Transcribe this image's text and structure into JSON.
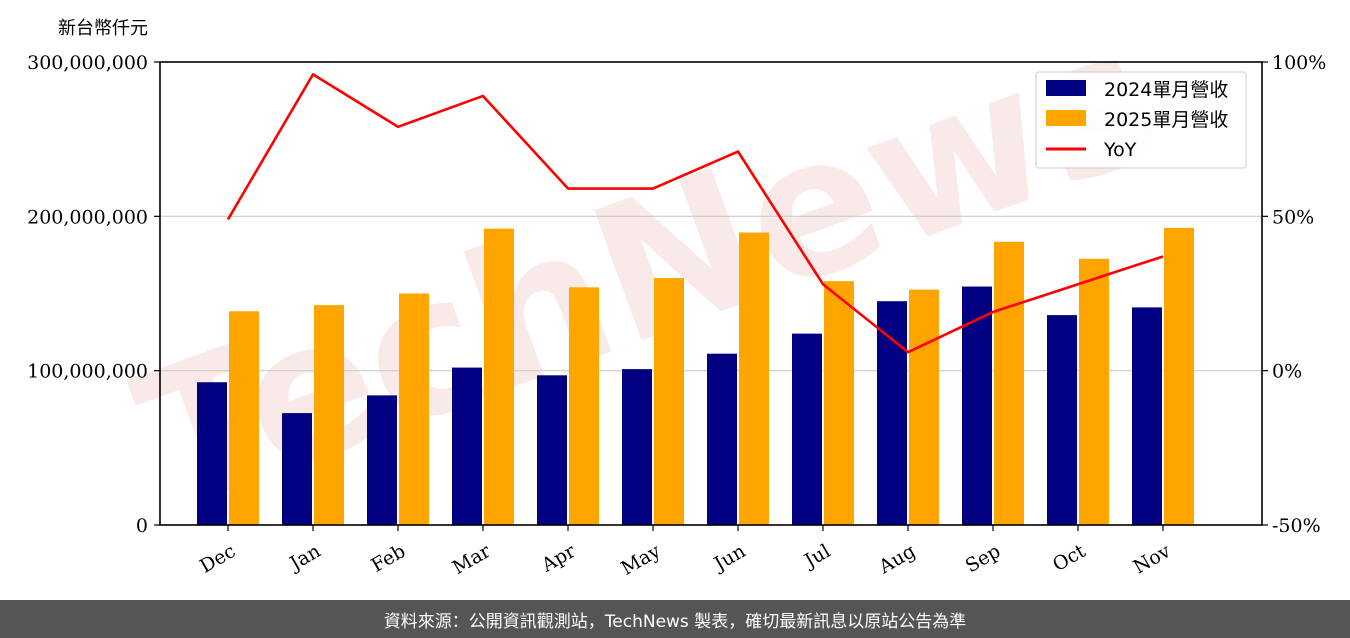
{
  "unit_label": "新台幣仟元",
  "footer": {
    "source": "資料來源：公開資訊觀測站，TechNews 製表，確切最新訊息以原站公告為準"
  },
  "watermark": {
    "text": "TechNews",
    "color": "#e8a0a0"
  },
  "colors": {
    "series_2024": "#000080",
    "series_2025": "#FFA500",
    "yoy": "#FF0000",
    "grid": "#cccccc",
    "footer_bg": "#555555"
  },
  "chart_data": {
    "type": "bar",
    "categories": [
      "Dec",
      "Jan",
      "Feb",
      "Mar",
      "Apr",
      "May",
      "Jun",
      "Jul",
      "Aug",
      "Sep",
      "Oct",
      "Nov"
    ],
    "series": [
      {
        "name": "2024單月營收",
        "values": [
          92500000,
          72500000,
          84000000,
          102000000,
          97000000,
          101000000,
          111000000,
          124000000,
          145000000,
          154500000,
          136000000,
          141000000
        ]
      },
      {
        "name": "2025單月營收",
        "values": [
          138500000,
          142500000,
          150000000,
          192000000,
          154000000,
          160000000,
          189500000,
          158000000,
          152500000,
          183500000,
          172500000,
          192500000
        ]
      }
    ],
    "line_series": {
      "name": "YoY",
      "values": [
        49,
        96,
        79,
        89,
        59,
        59,
        71,
        28,
        6,
        19,
        28,
        37
      ]
    },
    "y_left": {
      "ticks": [
        "0",
        "100,000,000",
        "200,000,000",
        "300,000,000"
      ],
      "tick_values": [
        0,
        100000000,
        200000000,
        300000000
      ],
      "ylim": [
        0,
        300000000
      ]
    },
    "y_right": {
      "ticks": [
        "-50%",
        "0%",
        "50%",
        "100%"
      ],
      "tick_values": [
        -50,
        0,
        50,
        100
      ],
      "ylim": [
        -50,
        100
      ]
    },
    "grid": "horizontal",
    "legend_position": "top-right"
  }
}
